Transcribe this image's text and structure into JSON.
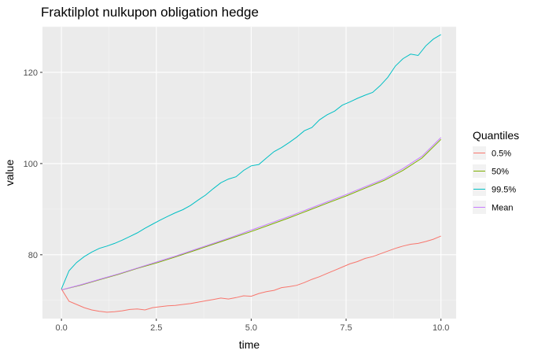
{
  "chart_data": {
    "type": "line",
    "title": "Fraktilplot nulkupon obligation hedge",
    "xlabel": "time",
    "ylabel": "value",
    "xlim": [
      -0.5,
      10.4
    ],
    "ylim": [
      66,
      130
    ],
    "xticks": [
      0.0,
      2.5,
      5.0,
      7.5,
      10.0
    ],
    "xtick_labels": [
      "0.0",
      "2.5",
      "5.0",
      "7.5",
      "10.0"
    ],
    "yticks": [
      80,
      100,
      120
    ],
    "ytick_labels": [
      "80",
      "100",
      "120"
    ],
    "grid": true,
    "legend": {
      "title": "Quantiles",
      "position": "right"
    },
    "series": [
      {
        "name": "0.5%",
        "color": "#F8766D",
        "x": [
          0,
          0.2,
          0.4,
          0.6,
          0.8,
          1,
          1.2,
          1.4,
          1.6,
          1.8,
          2,
          2.2,
          2.4,
          2.6,
          2.8,
          3,
          3.2,
          3.4,
          3.6,
          3.8,
          4,
          4.2,
          4.4,
          4.6,
          4.8,
          5,
          5.2,
          5.4,
          5.6,
          5.8,
          6,
          6.2,
          6.4,
          6.6,
          6.8,
          7,
          7.2,
          7.4,
          7.6,
          7.8,
          8,
          8.2,
          8.4,
          8.6,
          8.8,
          9,
          9.2,
          9.4,
          9.6,
          9.8,
          10
        ],
        "y": [
          72.5,
          69.8,
          69.1,
          68.4,
          67.9,
          67.6,
          67.4,
          67.5,
          67.7,
          68.0,
          68.1,
          67.9,
          68.4,
          68.6,
          68.8,
          68.9,
          69.1,
          69.3,
          69.6,
          69.9,
          70.2,
          70.5,
          70.3,
          70.6,
          71.0,
          70.9,
          71.5,
          71.9,
          72.2,
          72.8,
          73.0,
          73.3,
          73.9,
          74.6,
          75.2,
          75.9,
          76.6,
          77.3,
          78.0,
          78.5,
          79.2,
          79.6,
          80.2,
          80.8,
          81.4,
          81.9,
          82.3,
          82.5,
          82.9,
          83.4,
          84.1
        ]
      },
      {
        "name": "50%",
        "color": "#7CAE00",
        "x": [
          0,
          0.5,
          1,
          1.5,
          2,
          2.5,
          3,
          3.5,
          4,
          4.5,
          5,
          5.5,
          6,
          6.5,
          7,
          7.5,
          8,
          8.5,
          9,
          9.5,
          10
        ],
        "y": [
          72.3,
          73.3,
          74.5,
          75.7,
          77.0,
          78.2,
          79.5,
          80.9,
          82.3,
          83.7,
          85.1,
          86.6,
          88.1,
          89.7,
          91.3,
          92.9,
          94.6,
          96.3,
          98.5,
          101.2,
          105.3
        ]
      },
      {
        "name": "99.5%",
        "color": "#00BFC4",
        "x": [
          0,
          0.2,
          0.4,
          0.6,
          0.8,
          1,
          1.2,
          1.4,
          1.6,
          1.8,
          2,
          2.2,
          2.4,
          2.6,
          2.8,
          3,
          3.2,
          3.4,
          3.6,
          3.8,
          4,
          4.2,
          4.4,
          4.6,
          4.8,
          5,
          5.2,
          5.4,
          5.6,
          5.8,
          6,
          6.2,
          6.4,
          6.6,
          6.8,
          7,
          7.2,
          7.4,
          7.6,
          7.8,
          8,
          8.2,
          8.4,
          8.6,
          8.8,
          9,
          9.2,
          9.4,
          9.6,
          9.8,
          10
        ],
        "y": [
          72.5,
          76.5,
          78.3,
          79.6,
          80.6,
          81.4,
          81.9,
          82.5,
          83.2,
          84.0,
          84.8,
          85.8,
          86.7,
          87.6,
          88.4,
          89.2,
          89.9,
          90.8,
          92.0,
          93.1,
          94.5,
          95.8,
          96.6,
          97.1,
          98.5,
          99.5,
          99.8,
          101.2,
          102.6,
          103.5,
          104.6,
          105.8,
          107.2,
          107.9,
          109.6,
          110.7,
          111.5,
          112.8,
          113.5,
          114.3,
          115.0,
          115.6,
          117.1,
          118.9,
          121.4,
          123.0,
          124.0,
          123.7,
          125.8,
          127.3,
          128.3
        ]
      },
      {
        "name": "Mean",
        "color": "#C77CFF",
        "x": [
          0,
          0.5,
          1,
          1.5,
          2,
          2.5,
          3,
          3.5,
          4,
          4.5,
          5,
          5.5,
          6,
          6.5,
          7,
          7.5,
          8,
          8.5,
          9,
          9.5,
          10
        ],
        "y": [
          72.3,
          73.4,
          74.6,
          75.8,
          77.1,
          78.4,
          79.7,
          81.1,
          82.5,
          83.9,
          85.4,
          86.9,
          88.4,
          90.0,
          91.6,
          93.2,
          94.9,
          96.6,
          98.9,
          101.6,
          105.7
        ]
      }
    ]
  }
}
